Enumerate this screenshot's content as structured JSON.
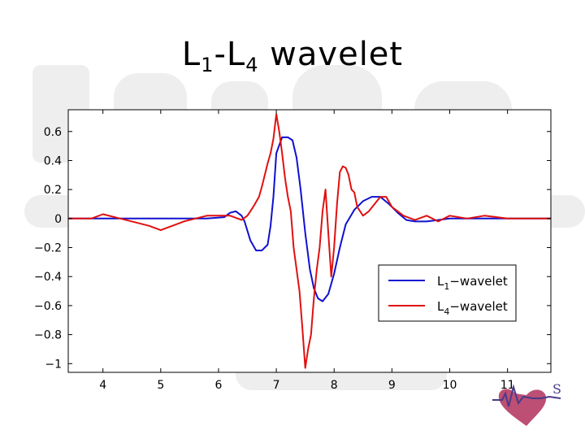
{
  "slide": {
    "title_main": "L",
    "title_sub1": "1",
    "title_mid": "-L",
    "title_sub2": "4",
    "title_tail": " wavelet"
  },
  "logo": {
    "text": "S"
  },
  "colors": {
    "l1": "#1010d0",
    "l4": "#e01010",
    "axis": "#000000"
  },
  "chart_data": {
    "type": "line",
    "xlim": [
      3.4,
      11.75
    ],
    "ylim": [
      -1.06,
      0.75
    ],
    "x_ticks": [
      4,
      5,
      6,
      7,
      8,
      9,
      10,
      11
    ],
    "x_tick_labels": [
      "4",
      "5",
      "6",
      "7",
      "8",
      "9",
      "10",
      "11"
    ],
    "y_ticks": [
      0.6,
      0.4,
      0.2,
      0,
      -0.2,
      -0.4,
      -0.6,
      -0.8,
      -1
    ],
    "y_tick_labels": [
      "0.6",
      "0.4",
      "0.2",
      "0",
      "−0.2",
      "−0.4",
      "−0.6",
      "−0.8",
      "−1"
    ],
    "legend_position": "lower-right",
    "grid": false,
    "series": [
      {
        "name": "L1−wavelet",
        "label_main": "L",
        "label_sub": "1",
        "label_tail": "−wavelet",
        "color": "#1010d0",
        "x": [
          3.4,
          3.8,
          4.3,
          4.8,
          5.3,
          5.8,
          6.1,
          6.2,
          6.3,
          6.4,
          6.45,
          6.55,
          6.65,
          6.75,
          6.85,
          6.9,
          6.95,
          7.0,
          7.1,
          7.2,
          7.28,
          7.35,
          7.42,
          7.5,
          7.58,
          7.65,
          7.72,
          7.8,
          7.9,
          8.0,
          8.1,
          8.2,
          8.35,
          8.5,
          8.65,
          8.8,
          8.95,
          9.1,
          9.25,
          9.4,
          9.6,
          9.8,
          10.0,
          10.5,
          11.0,
          11.75
        ],
        "y": [
          0.0,
          0.0,
          0.0,
          0.0,
          0.0,
          0.0,
          0.01,
          0.04,
          0.05,
          0.02,
          -0.02,
          -0.15,
          -0.22,
          -0.22,
          -0.18,
          -0.05,
          0.15,
          0.45,
          0.56,
          0.56,
          0.54,
          0.42,
          0.2,
          -0.1,
          -0.35,
          -0.48,
          -0.55,
          -0.57,
          -0.52,
          -0.38,
          -0.2,
          -0.04,
          0.06,
          0.12,
          0.15,
          0.15,
          0.1,
          0.04,
          -0.01,
          -0.02,
          -0.02,
          -0.01,
          0.0,
          0.0,
          0.0,
          0.0
        ]
      },
      {
        "name": "L4−wavelet",
        "label_main": "L",
        "label_sub": "4",
        "label_tail": "−wavelet",
        "color": "#e01010",
        "x": [
          3.4,
          3.8,
          4.0,
          4.3,
          4.6,
          4.8,
          5.0,
          5.2,
          5.4,
          5.6,
          5.8,
          6.0,
          6.2,
          6.4,
          6.5,
          6.6,
          6.7,
          6.75,
          6.8,
          6.85,
          6.9,
          6.95,
          7.0,
          7.05,
          7.1,
          7.15,
          7.2,
          7.25,
          7.3,
          7.35,
          7.4,
          7.45,
          7.5,
          7.55,
          7.6,
          7.65,
          7.7,
          7.75,
          7.8,
          7.85,
          7.9,
          7.95,
          8.0,
          8.05,
          8.1,
          8.15,
          8.2,
          8.25,
          8.3,
          8.35,
          8.4,
          8.5,
          8.6,
          8.7,
          8.8,
          8.9,
          9.0,
          9.1,
          9.2,
          9.4,
          9.6,
          9.8,
          10.0,
          10.3,
          10.6,
          11.0,
          11.75
        ],
        "y": [
          0.0,
          0.0,
          0.03,
          0.0,
          -0.03,
          -0.05,
          -0.08,
          -0.05,
          -0.02,
          0.0,
          0.02,
          0.02,
          0.02,
          -0.01,
          0.02,
          0.08,
          0.15,
          0.22,
          0.3,
          0.38,
          0.45,
          0.55,
          0.72,
          0.6,
          0.45,
          0.28,
          0.15,
          0.05,
          -0.2,
          -0.35,
          -0.5,
          -0.75,
          -1.03,
          -0.9,
          -0.8,
          -0.55,
          -0.35,
          -0.2,
          0.05,
          0.2,
          -0.1,
          -0.4,
          -0.2,
          0.1,
          0.32,
          0.36,
          0.35,
          0.3,
          0.2,
          0.18,
          0.08,
          0.02,
          0.05,
          0.1,
          0.15,
          0.15,
          0.08,
          0.05,
          0.02,
          -0.01,
          0.02,
          -0.02,
          0.02,
          0.0,
          0.02,
          0.0,
          0.0
        ]
      }
    ]
  }
}
